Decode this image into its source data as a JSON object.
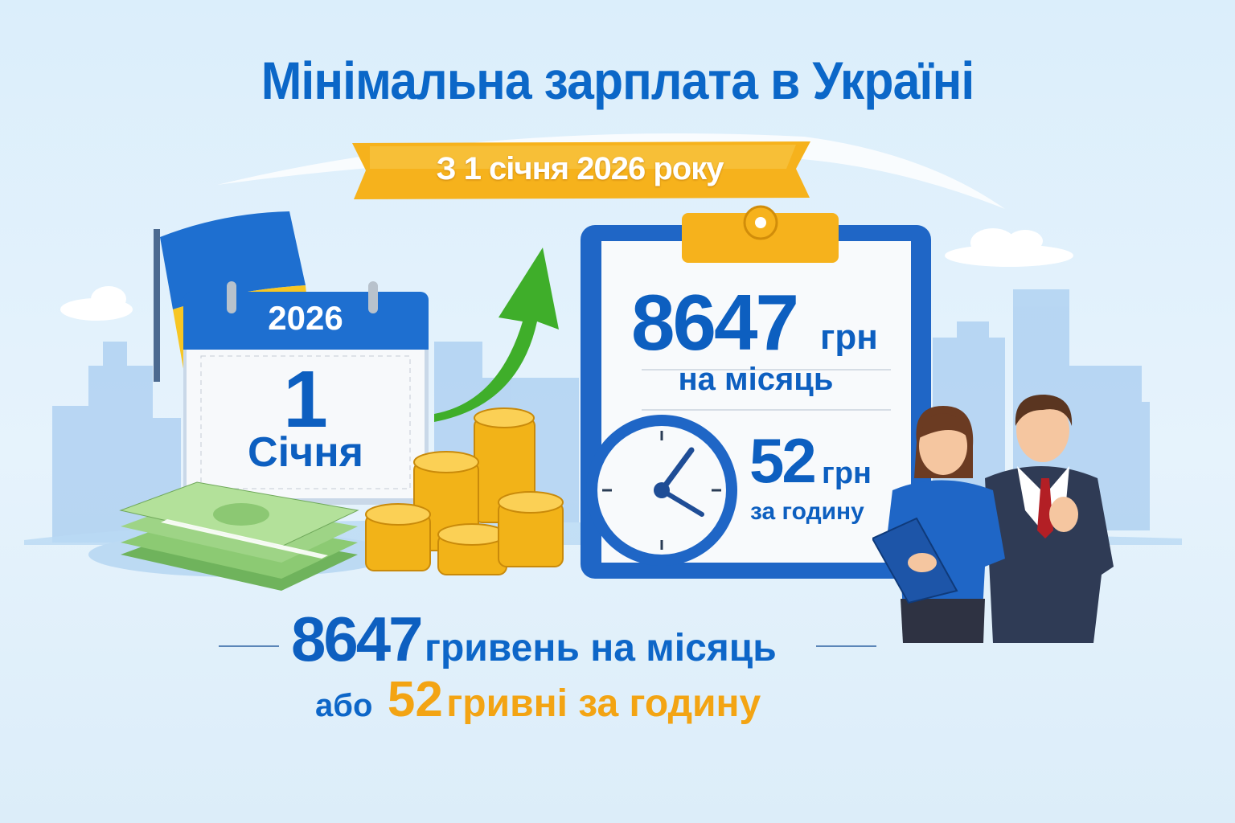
{
  "title": "Мінімальна зарплата в Україні",
  "banner": "З 1 січня 2026 року",
  "calendar": {
    "year": "2026",
    "day": "1",
    "month": "Січня"
  },
  "clipboard": {
    "monthly_amount": "8647",
    "monthly_currency": "грн",
    "monthly_period": "на місяць",
    "hourly_amount": "52",
    "hourly_currency": "грн",
    "hourly_period": "за годину"
  },
  "summary": {
    "line1_amount": "8647",
    "line1_text": "гривень на місяць",
    "line2_prefix": "або",
    "line2_amount": "52",
    "line2_text": "гривні за годину"
  },
  "colors": {
    "primary_blue": "#0b67c8",
    "accent_orange": "#f3a413",
    "flag_blue": "#1e6fd0",
    "flag_yellow": "#f7c623",
    "arrow_green": "#3fae2a"
  },
  "icons": [
    "ukraine-flag",
    "calendar",
    "growth-arrow",
    "banknotes",
    "coins",
    "clipboard",
    "clock",
    "office-workers"
  ]
}
